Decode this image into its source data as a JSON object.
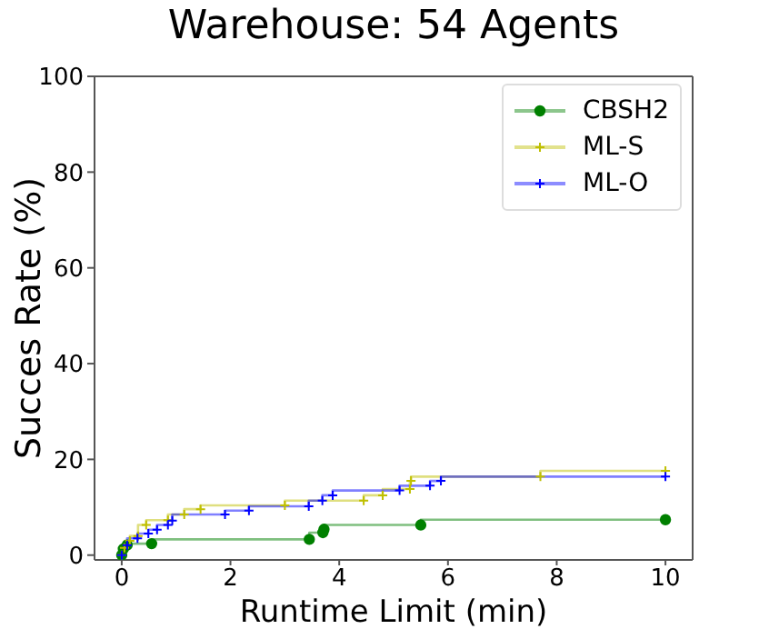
{
  "chart_data": {
    "type": "step",
    "title": "Warehouse: 54 Agents",
    "xlabel": "Runtime Limit (min)",
    "ylabel": "Succes Rate (%)",
    "xlim": [
      -0.5,
      10.5
    ],
    "xticks": [
      0,
      2,
      4,
      6,
      8,
      10
    ],
    "ylim": [
      -1,
      100
    ],
    "yticks": [
      0,
      20,
      40,
      60,
      80,
      100
    ],
    "grid": false,
    "legend": "top right",
    "line_style": "solid",
    "series": [
      {
        "name": "CBSH2",
        "color": "#008000",
        "marker": "circle",
        "x": [
          0,
          0.03,
          0.1,
          0.55,
          3.45,
          3.7,
          3.72,
          5.5,
          10
        ],
        "values": [
          0,
          1.3,
          2.1,
          2.4,
          3.3,
          4.7,
          5.4,
          6.3,
          7.4
        ]
      },
      {
        "name": "ML-S",
        "color": "#bfbf00",
        "marker": "cross",
        "x": [
          0,
          0.05,
          0.15,
          0.3,
          0.45,
          0.85,
          1.15,
          1.45,
          3.0,
          4.45,
          4.8,
          5.3,
          5.32,
          7.7,
          10
        ],
        "values": [
          0,
          1.5,
          3,
          4,
          6.3,
          7.3,
          8.5,
          9.6,
          10.4,
          11.4,
          12.5,
          13.8,
          15.5,
          16.4,
          17.6
        ]
      },
      {
        "name": "ML-O",
        "color": "#0000ff",
        "marker": "cross",
        "x": [
          0,
          0.1,
          0.29,
          0.49,
          0.65,
          0.85,
          0.93,
          1.9,
          2.34,
          3.44,
          3.69,
          3.88,
          5.11,
          5.67,
          5.87,
          10
        ],
        "values": [
          0,
          2.1,
          3.5,
          4.5,
          5.3,
          6.3,
          7.2,
          8.5,
          9.3,
          10.2,
          11.4,
          12.5,
          13.5,
          14.5,
          15.5,
          16.4
        ]
      }
    ]
  }
}
